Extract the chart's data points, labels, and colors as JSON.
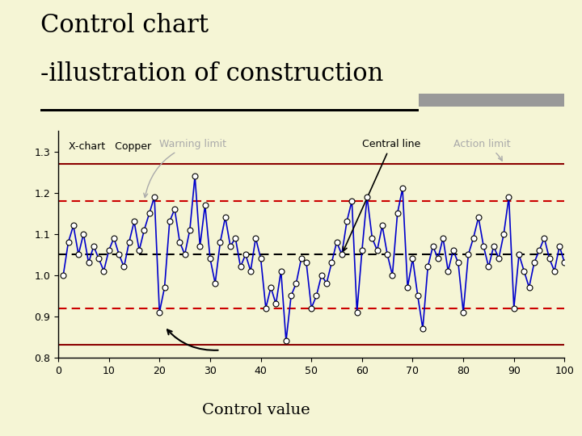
{
  "title_line1": "Control chart",
  "title_line2": "-illustration of construction",
  "subtitle": "X-chart   Copper",
  "xlabel_annotation": "Control value",
  "central_line": 1.05,
  "warning_upper": 1.18,
  "warning_lower": 0.92,
  "action_upper": 1.27,
  "action_lower": 0.83,
  "xlim": [
    0,
    100
  ],
  "ylim": [
    0.8,
    1.35
  ],
  "yticks": [
    0.8,
    0.9,
    1.0,
    1.1,
    1.2,
    1.3
  ],
  "xticks": [
    0,
    10,
    20,
    30,
    40,
    50,
    60,
    70,
    80,
    90,
    100
  ],
  "bg_color": "#f5f5d5",
  "line_color": "#0000cc",
  "central_color": "#000000",
  "warning_color": "#cc0000",
  "action_color": "#8b0000",
  "marker_color": "#000000",
  "gray_color": "#aaaaaa",
  "data_y": [
    1.0,
    1.08,
    1.12,
    1.05,
    1.1,
    1.03,
    1.07,
    1.04,
    1.01,
    1.06,
    1.09,
    1.05,
    1.02,
    1.08,
    1.13,
    1.06,
    1.11,
    1.15,
    1.19,
    0.91,
    0.97,
    1.13,
    1.16,
    1.08,
    1.05,
    1.11,
    1.24,
    1.07,
    1.17,
    1.04,
    0.98,
    1.08,
    1.14,
    1.07,
    1.09,
    1.02,
    1.05,
    1.01,
    1.09,
    1.04,
    0.92,
    0.97,
    0.93,
    1.01,
    0.84,
    0.95,
    0.98,
    1.04,
    1.03,
    0.92,
    0.95,
    1.0,
    0.98,
    1.03,
    1.08,
    1.05,
    1.13,
    1.18,
    0.91,
    1.06,
    1.19,
    1.09,
    1.06,
    1.12,
    1.05,
    1.0,
    1.15,
    1.21,
    0.97,
    1.04,
    0.95,
    0.87,
    1.02,
    1.07,
    1.04,
    1.09,
    1.01,
    1.06,
    1.03,
    0.91,
    1.05,
    1.09,
    1.14,
    1.07,
    1.02,
    1.07,
    1.04,
    1.1,
    1.19,
    0.92,
    1.05,
    1.01,
    0.97,
    1.03,
    1.06,
    1.09,
    1.04,
    1.01,
    1.07,
    1.03
  ]
}
